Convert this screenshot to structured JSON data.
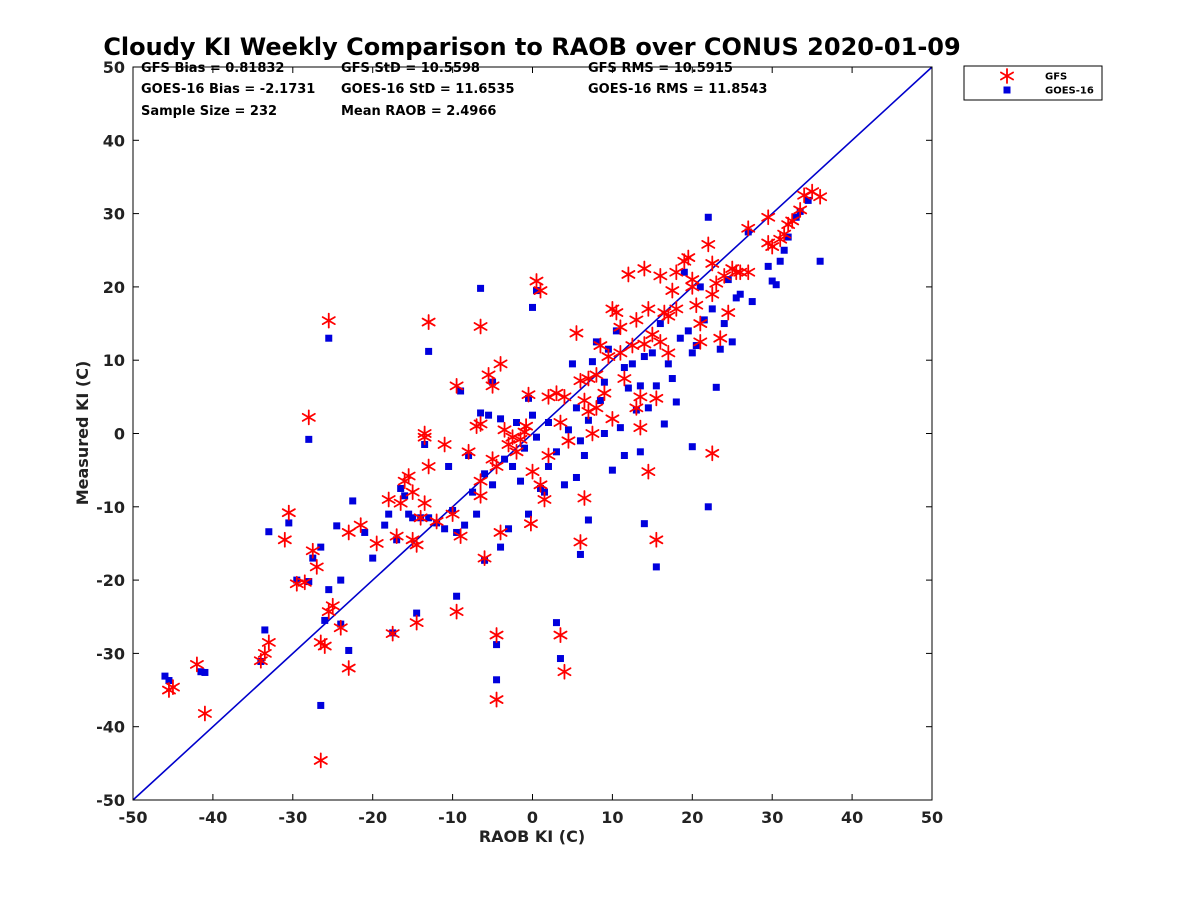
{
  "chart_data": {
    "type": "scatter",
    "title": "Cloudy KI Weekly Comparison to RAOB over CONUS 2020-01-09",
    "xlabel": "RAOB KI (C)",
    "ylabel": "Measured KI (C)",
    "xlim": [
      -50,
      50
    ],
    "ylim": [
      -50,
      50
    ],
    "xticks": [
      -50,
      -40,
      -30,
      -20,
      -10,
      0,
      10,
      20,
      30,
      40,
      50
    ],
    "yticks": [
      -50,
      -40,
      -30,
      -20,
      -10,
      0,
      10,
      20,
      30,
      40,
      50
    ],
    "grid": false,
    "legend_position": "top-right outside",
    "reference_line": {
      "from": [
        -50,
        -50
      ],
      "to": [
        50,
        50
      ],
      "color": "#0000cc"
    },
    "stats": [
      [
        "GFS Bias = 0.81832",
        "GFS StD = 10.5598",
        "GFS RMS = 10.5915"
      ],
      [
        "GOES-16 Bias = -2.1731",
        "GOES-16 StD = 11.6535",
        "GOES-16 RMS = 11.8543"
      ],
      [
        "Sample Size = 232",
        "Mean RAOB = 2.4966",
        ""
      ]
    ],
    "series": [
      {
        "name": "GFS",
        "marker": "asterisk",
        "color": "#ff0000",
        "points": [
          [
            -45.5,
            -35
          ],
          [
            -45,
            -34.6
          ],
          [
            -42,
            -31.5
          ],
          [
            -41,
            -38.2
          ],
          [
            -34,
            -31
          ],
          [
            -33.5,
            -30
          ],
          [
            -33,
            -28.5
          ],
          [
            -31,
            -14.5
          ],
          [
            -30.5,
            -10.8
          ],
          [
            -29.5,
            -20.5
          ],
          [
            -28.5,
            -20.3
          ],
          [
            -28,
            2.2
          ],
          [
            -27.5,
            -16
          ],
          [
            -27,
            -18.2
          ],
          [
            -26.5,
            -28.5
          ],
          [
            -26.5,
            -44.6
          ],
          [
            -26,
            -29
          ],
          [
            -25.5,
            15.4
          ],
          [
            -25.5,
            -24.3
          ],
          [
            -25,
            -23.5
          ],
          [
            -24,
            -26.5
          ],
          [
            -23,
            -32
          ],
          [
            -23,
            -13.5
          ],
          [
            -21.5,
            -12.5
          ],
          [
            -19.5,
            -15
          ],
          [
            -18,
            -9
          ],
          [
            -17.5,
            -27.3
          ],
          [
            -17,
            -14
          ],
          [
            -16.5,
            -9.5
          ],
          [
            -16,
            -6.5
          ],
          [
            -15.5,
            -5.8
          ],
          [
            -15,
            -8
          ],
          [
            -15,
            -14.5
          ],
          [
            -14.5,
            -25.8
          ],
          [
            -14.5,
            -15.2
          ],
          [
            -14,
            -11.5
          ],
          [
            -13.5,
            -9.5
          ],
          [
            -13.5,
            0
          ],
          [
            -13.5,
            -0.5
          ],
          [
            -13,
            -4.5
          ],
          [
            -13,
            15.2
          ],
          [
            -12,
            -12
          ],
          [
            -11,
            -1.5
          ],
          [
            -10,
            -11
          ],
          [
            -9.5,
            -24.3
          ],
          [
            -9.5,
            6.5
          ],
          [
            -9,
            -14
          ],
          [
            -8,
            -2.5
          ],
          [
            -7,
            1
          ],
          [
            -6.5,
            1.3
          ],
          [
            -6.5,
            14.6
          ],
          [
            -6.5,
            -6.5
          ],
          [
            -6.5,
            -8.5
          ],
          [
            -6,
            -17
          ],
          [
            -5.5,
            8
          ],
          [
            -5,
            6.5
          ],
          [
            -5,
            -3.5
          ],
          [
            -4.5,
            -27.5
          ],
          [
            -4.5,
            -36.3
          ],
          [
            -4.5,
            -4.5
          ],
          [
            -4,
            9.5
          ],
          [
            -4,
            -13.5
          ],
          [
            -3.5,
            0.5
          ],
          [
            -3,
            -1.5
          ],
          [
            -2.5,
            -0.5
          ],
          [
            -2,
            -2.5
          ],
          [
            -1.5,
            -0.8
          ],
          [
            -1,
            0.2
          ],
          [
            -0.8,
            1
          ],
          [
            -0.5,
            5.3
          ],
          [
            -0.2,
            -12.3
          ],
          [
            0,
            -5.2
          ],
          [
            0.5,
            20.8
          ],
          [
            1,
            19.5
          ],
          [
            1,
            -7
          ],
          [
            1.5,
            -9
          ],
          [
            2,
            5
          ],
          [
            2,
            -3
          ],
          [
            3,
            5.5
          ],
          [
            3.5,
            -27.5
          ],
          [
            3.5,
            1.5
          ],
          [
            4,
            -32.5
          ],
          [
            4.5,
            -1
          ],
          [
            4,
            5
          ],
          [
            5.5,
            13.7
          ],
          [
            6,
            7.2
          ],
          [
            6,
            -14.8
          ],
          [
            6.5,
            -8.8
          ],
          [
            6.5,
            4.5
          ],
          [
            7,
            7.5
          ],
          [
            7,
            3
          ],
          [
            7.5,
            0
          ],
          [
            8,
            8
          ],
          [
            8,
            3.5
          ],
          [
            8.5,
            12
          ],
          [
            9,
            5.5
          ],
          [
            9.5,
            10.5
          ],
          [
            10,
            17
          ],
          [
            10,
            2
          ],
          [
            10.5,
            16.5
          ],
          [
            11,
            11
          ],
          [
            11,
            14.5
          ],
          [
            11.5,
            7.5
          ],
          [
            12,
            21.7
          ],
          [
            12.5,
            12
          ],
          [
            13,
            15.5
          ],
          [
            13,
            3.5
          ],
          [
            13.5,
            5
          ],
          [
            13.5,
            0.8
          ],
          [
            14,
            22.5
          ],
          [
            14,
            12.2
          ],
          [
            14.5,
            -5.2
          ],
          [
            14.5,
            17
          ],
          [
            15,
            13.5
          ],
          [
            15.5,
            4.8
          ],
          [
            15.5,
            -14.5
          ],
          [
            16,
            21.5
          ],
          [
            16,
            12.5
          ],
          [
            16.5,
            16.5
          ],
          [
            17,
            16
          ],
          [
            17,
            11
          ],
          [
            17.5,
            19.5
          ],
          [
            18,
            17
          ],
          [
            18,
            22
          ],
          [
            19,
            23.5
          ],
          [
            19.5,
            24
          ],
          [
            20,
            21
          ],
          [
            20,
            20
          ],
          [
            20.5,
            17.5
          ],
          [
            21,
            15
          ],
          [
            21,
            12.5
          ],
          [
            22,
            25.8
          ],
          [
            22.5,
            23.2
          ],
          [
            22.5,
            19
          ],
          [
            22.5,
            -2.7
          ],
          [
            23,
            20.5
          ],
          [
            23.5,
            13
          ],
          [
            24,
            21.5
          ],
          [
            24.5,
            16.5
          ],
          [
            25,
            22.5
          ],
          [
            25.5,
            22
          ],
          [
            26,
            22
          ],
          [
            27,
            22
          ],
          [
            27,
            28
          ],
          [
            29.5,
            29.5
          ],
          [
            29.5,
            26
          ],
          [
            30,
            25.5
          ],
          [
            31,
            26.5
          ],
          [
            31.5,
            27.2
          ],
          [
            32,
            28.5
          ],
          [
            32.5,
            29
          ],
          [
            33.5,
            30.5
          ],
          [
            34,
            32.5
          ],
          [
            35,
            33
          ],
          [
            36,
            32.3
          ]
        ]
      },
      {
        "name": "GOES-16",
        "marker": "square",
        "color": "#0000dd",
        "points": [
          [
            -46,
            -33.1
          ],
          [
            -45.5,
            -33.7
          ],
          [
            -41.5,
            -32.5
          ],
          [
            -41,
            -32.6
          ],
          [
            -34,
            -31.1
          ],
          [
            -33.5,
            -26.8
          ],
          [
            -33,
            -13.4
          ],
          [
            -30.5,
            -12.2
          ],
          [
            -29.5,
            -20
          ],
          [
            -28,
            -0.8
          ],
          [
            -28,
            -20.2
          ],
          [
            -27.5,
            -17
          ],
          [
            -26.5,
            -15.5
          ],
          [
            -26.5,
            -37.1
          ],
          [
            -26,
            -25.5
          ],
          [
            -25.5,
            13
          ],
          [
            -25.5,
            -21.3
          ],
          [
            -24.5,
            -12.6
          ],
          [
            -24,
            -20
          ],
          [
            -24,
            -26
          ],
          [
            -23,
            -29.6
          ],
          [
            -22.5,
            -9.2
          ],
          [
            -21,
            -13.5
          ],
          [
            -20,
            -17
          ],
          [
            -18.5,
            -12.5
          ],
          [
            -18,
            -11
          ],
          [
            -17.5,
            -27.2
          ],
          [
            -17,
            -14.5
          ],
          [
            -16.5,
            -7.5
          ],
          [
            -16,
            -8.5
          ],
          [
            -15.5,
            -11
          ],
          [
            -15,
            -11.5
          ],
          [
            -14.5,
            -24.5
          ],
          [
            -14,
            -11.5
          ],
          [
            -13.5,
            -1.5
          ],
          [
            -13,
            -11.5
          ],
          [
            -13,
            11.2
          ],
          [
            -12,
            -12.2
          ],
          [
            -11,
            -13
          ],
          [
            -10.5,
            -4.5
          ],
          [
            -10,
            -10.5
          ],
          [
            -9.5,
            -13.5
          ],
          [
            -9.5,
            -22.2
          ],
          [
            -9,
            5.8
          ],
          [
            -8.5,
            -12.5
          ],
          [
            -8,
            -3
          ],
          [
            -7.5,
            -8
          ],
          [
            -7,
            -11
          ],
          [
            -6.5,
            2.8
          ],
          [
            -6.5,
            19.8
          ],
          [
            -6,
            -5.5
          ],
          [
            -6,
            -17.3
          ],
          [
            -5.5,
            2.5
          ],
          [
            -5,
            -7
          ],
          [
            -5,
            7
          ],
          [
            -4.5,
            -28.8
          ],
          [
            -4.5,
            -33.6
          ],
          [
            -4,
            2
          ],
          [
            -4,
            -15.5
          ],
          [
            -3.5,
            -3.5
          ],
          [
            -3,
            -13
          ],
          [
            -2.5,
            -4.5
          ],
          [
            -2,
            1.5
          ],
          [
            -1.5,
            -6.5
          ],
          [
            -1,
            -2
          ],
          [
            -0.5,
            4.8
          ],
          [
            -0.5,
            -11
          ],
          [
            0,
            2.5
          ],
          [
            0,
            17.2
          ],
          [
            0.5,
            19.5
          ],
          [
            0.5,
            -0.5
          ],
          [
            1,
            -7.5
          ],
          [
            1.5,
            -8
          ],
          [
            2,
            -4.5
          ],
          [
            2,
            1.5
          ],
          [
            3,
            -25.8
          ],
          [
            3,
            -2.5
          ],
          [
            3.5,
            -30.7
          ],
          [
            4,
            -7
          ],
          [
            4.5,
            0.5
          ],
          [
            5,
            9.5
          ],
          [
            5.5,
            3.5
          ],
          [
            5.5,
            -6
          ],
          [
            6,
            -1
          ],
          [
            6,
            -16.5
          ],
          [
            6.5,
            -3
          ],
          [
            7,
            -11.8
          ],
          [
            7,
            1.8
          ],
          [
            7.5,
            9.8
          ],
          [
            8,
            12.5
          ],
          [
            8.5,
            4.5
          ],
          [
            9,
            7
          ],
          [
            9,
            0
          ],
          [
            9.5,
            11.5
          ],
          [
            10,
            -5
          ],
          [
            10.5,
            14
          ],
          [
            11,
            0.8
          ],
          [
            11.5,
            9
          ],
          [
            11.5,
            -3
          ],
          [
            12,
            6.2
          ],
          [
            12.5,
            9.5
          ],
          [
            13,
            3.2
          ],
          [
            13.5,
            -2.5
          ],
          [
            13.5,
            6.5
          ],
          [
            14,
            10.5
          ],
          [
            14,
            -12.3
          ],
          [
            14.5,
            3.5
          ],
          [
            15,
            11
          ],
          [
            15.5,
            6.5
          ],
          [
            15.5,
            -18.2
          ],
          [
            16,
            15
          ],
          [
            16.5,
            1.3
          ],
          [
            17,
            9.5
          ],
          [
            17.5,
            7.5
          ],
          [
            18,
            4.3
          ],
          [
            18.5,
            13
          ],
          [
            19,
            22
          ],
          [
            19.5,
            14
          ],
          [
            20,
            11
          ],
          [
            20,
            -1.8
          ],
          [
            20.5,
            12
          ],
          [
            21,
            20
          ],
          [
            21.5,
            15.5
          ],
          [
            22,
            29.5
          ],
          [
            22,
            -10
          ],
          [
            22.5,
            17
          ],
          [
            23,
            6.3
          ],
          [
            23.5,
            11.5
          ],
          [
            24,
            15
          ],
          [
            24.5,
            21
          ],
          [
            25,
            12.5
          ],
          [
            25.5,
            18.5
          ],
          [
            26,
            19
          ],
          [
            27,
            27.5
          ],
          [
            27.5,
            18
          ],
          [
            29.5,
            22.8
          ],
          [
            30,
            20.8
          ],
          [
            31,
            23.5
          ],
          [
            31.5,
            25
          ],
          [
            32,
            26.8
          ],
          [
            33,
            29.5
          ],
          [
            33.5,
            30.3
          ],
          [
            34.5,
            31.8
          ],
          [
            36,
            23.5
          ],
          [
            30.5,
            20.3
          ]
        ]
      }
    ]
  }
}
